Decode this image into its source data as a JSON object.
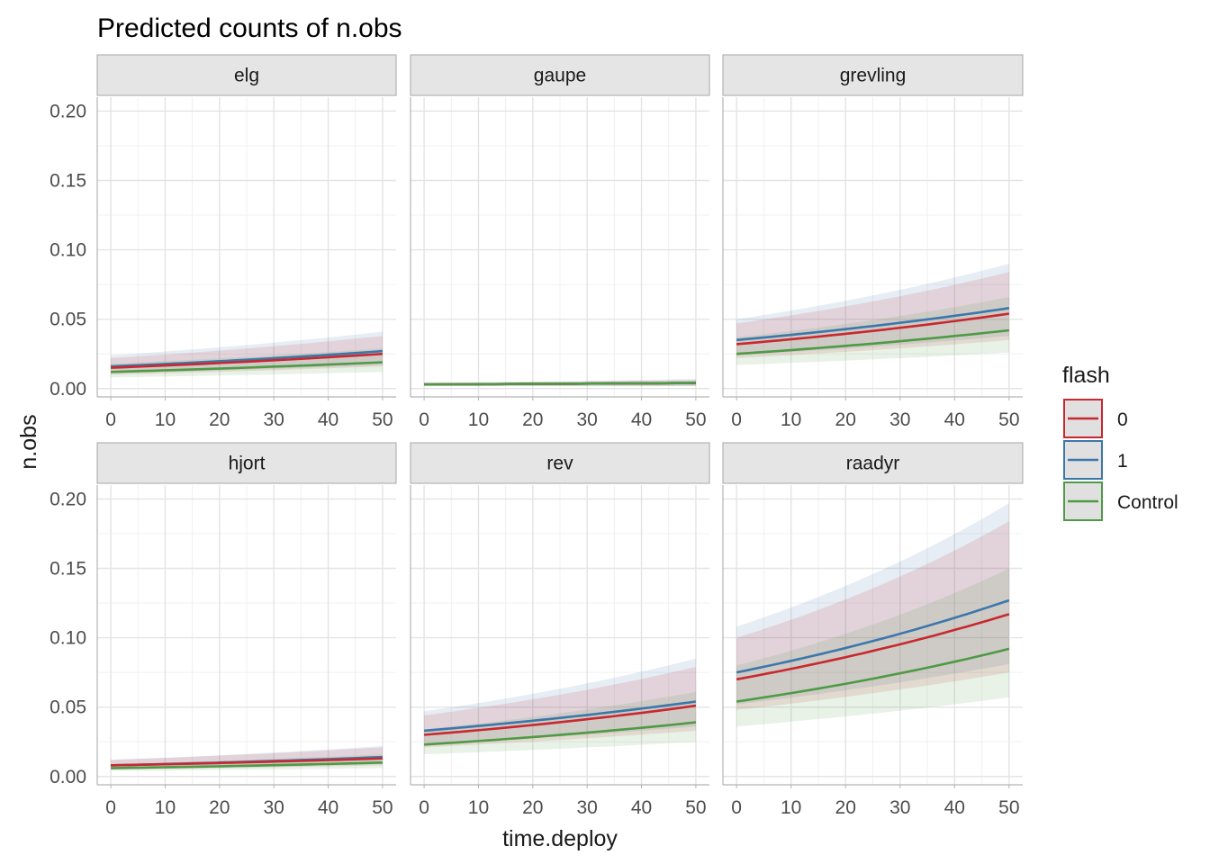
{
  "chart_data": {
    "type": "line",
    "title": "Predicted counts of n.obs",
    "xlabel": "time.deploy",
    "ylabel": "n.obs",
    "xlim": [
      -2.5,
      52.5
    ],
    "ylim": [
      -0.006,
      0.21
    ],
    "x_ticks": [
      0,
      10,
      20,
      30,
      40,
      50
    ],
    "y_ticks": [
      0.0,
      0.05,
      0.1,
      0.15,
      0.2
    ],
    "x_tick_labels": [
      "0",
      "10",
      "20",
      "30",
      "40",
      "50"
    ],
    "y_tick_labels": [
      "0.00",
      "0.05",
      "0.10",
      "0.15",
      "0.20"
    ],
    "grid": true,
    "legend": {
      "title": "flash",
      "position": "right",
      "entries": [
        {
          "label": "0",
          "color": "#C8282E"
        },
        {
          "label": "1",
          "color": "#3C77AB"
        },
        {
          "label": "Control",
          "color": "#4E9A45"
        }
      ]
    },
    "x": [
      0,
      50
    ],
    "panels": [
      {
        "name": "elg",
        "series": [
          {
            "name": "0",
            "start": 0.015,
            "end": 0.025,
            "lo": [
              0.01,
              0.016
            ],
            "hi": [
              0.022,
              0.038
            ]
          },
          {
            "name": "1",
            "start": 0.016,
            "end": 0.027,
            "lo": [
              0.011,
              0.017
            ],
            "hi": [
              0.024,
              0.041
            ]
          },
          {
            "name": "Control",
            "start": 0.012,
            "end": 0.019,
            "lo": [
              0.008,
              0.012
            ],
            "hi": [
              0.018,
              0.029
            ]
          }
        ]
      },
      {
        "name": "gaupe",
        "series": [
          {
            "name": "0",
            "start": 0.003,
            "end": 0.004,
            "lo": [
              0.002,
              0.002
            ],
            "hi": [
              0.004,
              0.006
            ]
          },
          {
            "name": "1",
            "start": 0.003,
            "end": 0.004,
            "lo": [
              0.002,
              0.002
            ],
            "hi": [
              0.004,
              0.007
            ]
          },
          {
            "name": "Control",
            "start": 0.003,
            "end": 0.004,
            "lo": [
              0.002,
              0.002
            ],
            "hi": [
              0.004,
              0.006
            ]
          }
        ]
      },
      {
        "name": "grevling",
        "series": [
          {
            "name": "0",
            "start": 0.032,
            "end": 0.054,
            "lo": [
              0.022,
              0.035
            ],
            "hi": [
              0.047,
              0.084
            ]
          },
          {
            "name": "1",
            "start": 0.035,
            "end": 0.058,
            "lo": [
              0.024,
              0.038
            ],
            "hi": [
              0.05,
              0.09
            ]
          },
          {
            "name": "Control",
            "start": 0.025,
            "end": 0.042,
            "lo": [
              0.017,
              0.026
            ],
            "hi": [
              0.037,
              0.066
            ]
          }
        ]
      },
      {
        "name": "hjort",
        "series": [
          {
            "name": "0",
            "start": 0.008,
            "end": 0.013,
            "lo": [
              0.005,
              0.008
            ],
            "hi": [
              0.012,
              0.021
            ]
          },
          {
            "name": "1",
            "start": 0.008,
            "end": 0.014,
            "lo": [
              0.005,
              0.009
            ],
            "hi": [
              0.012,
              0.022
            ]
          },
          {
            "name": "Control",
            "start": 0.006,
            "end": 0.01,
            "lo": [
              0.004,
              0.006
            ],
            "hi": [
              0.009,
              0.016
            ]
          }
        ]
      },
      {
        "name": "rev",
        "series": [
          {
            "name": "0",
            "start": 0.03,
            "end": 0.051,
            "lo": [
              0.021,
              0.033
            ],
            "hi": [
              0.044,
              0.079
            ]
          },
          {
            "name": "1",
            "start": 0.033,
            "end": 0.054,
            "lo": [
              0.023,
              0.036
            ],
            "hi": [
              0.047,
              0.085
            ]
          },
          {
            "name": "Control",
            "start": 0.023,
            "end": 0.039,
            "lo": [
              0.016,
              0.025
            ],
            "hi": [
              0.034,
              0.061
            ]
          }
        ]
      },
      {
        "name": "raadyr",
        "series": [
          {
            "name": "0",
            "start": 0.07,
            "end": 0.117,
            "lo": [
              0.048,
              0.075
            ],
            "hi": [
              0.1,
              0.184
            ]
          },
          {
            "name": "1",
            "start": 0.075,
            "end": 0.127,
            "lo": [
              0.052,
              0.081
            ],
            "hi": [
              0.108,
              0.197
            ]
          },
          {
            "name": "Control",
            "start": 0.054,
            "end": 0.092,
            "lo": [
              0.036,
              0.057
            ],
            "hi": [
              0.08,
              0.15
            ]
          }
        ]
      }
    ]
  }
}
